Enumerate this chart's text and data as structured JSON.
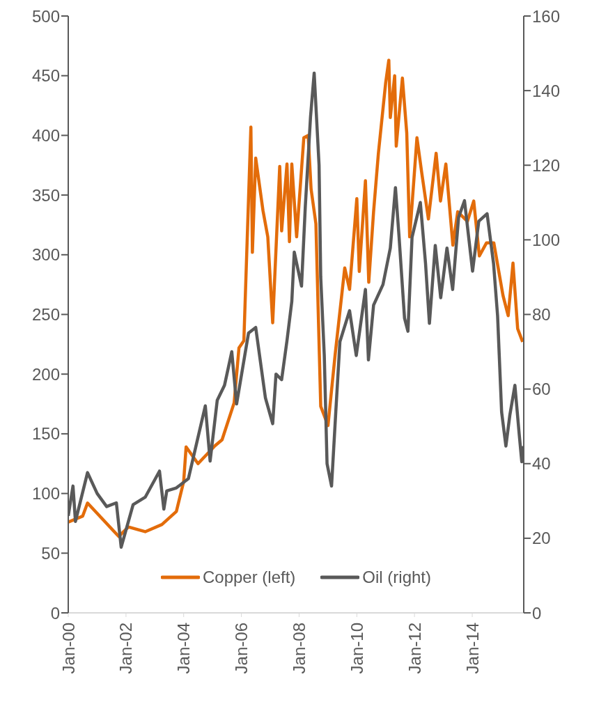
{
  "chart_data": {
    "type": "line",
    "xlim": [
      "2000-01-01",
      "2015-10-15"
    ],
    "xticks": [
      {
        "value": "2000-01-01",
        "label": "Jan-00"
      },
      {
        "value": "2002-01-01",
        "label": "Jan-02"
      },
      {
        "value": "2004-01-01",
        "label": "Jan-04"
      },
      {
        "value": "2006-01-01",
        "label": "Jan-06"
      },
      {
        "value": "2008-01-01",
        "label": "Jan-08"
      },
      {
        "value": "2010-01-01",
        "label": "Jan-10"
      },
      {
        "value": "2012-01-01",
        "label": "Jan-12"
      },
      {
        "value": "2014-01-01",
        "label": "Jan-14"
      }
    ],
    "ylim": [
      0,
      500
    ],
    "yticks": [
      0,
      50,
      100,
      150,
      200,
      250,
      300,
      350,
      400,
      450,
      500
    ],
    "y2lim": [
      0,
      160
    ],
    "y2ticks": [
      0,
      20,
      40,
      60,
      80,
      100,
      120,
      140,
      160
    ],
    "legend": "bottom",
    "marker": "none",
    "series": [
      {
        "name": "Copper (left)",
        "color": "#e36c0a",
        "x": [
          "2000-01",
          "2000-07",
          "2000-09",
          "2001-10",
          "2002-02",
          "2002-09",
          "2003-04",
          "2003-10",
          "2004-01",
          "2004-02",
          "2004-07",
          "2005-02",
          "2005-05",
          "2005-10",
          "2005-12",
          "2006-02",
          "2006-05-01",
          "2006-05-20",
          "2006-07",
          "2006-10",
          "2006-12",
          "2007-02",
          "2007-05-01",
          "2007-05-25",
          "2007-08-01",
          "2007-09-01",
          "2007-10",
          "2007-12",
          "2008-03",
          "2008-04-25",
          "2008-06",
          "2008-08",
          "2008-10",
          "2009-01",
          "2009-04",
          "2009-08",
          "2009-10",
          "2010-01",
          "2010-02",
          "2010-04-20",
          "2010-06",
          "2010-08",
          "2010-10",
          "2011-01",
          "2011-02-10",
          "2011-03",
          "2011-04-25",
          "2011-05-15",
          "2011-08",
          "2011-09-25",
          "2011-11",
          "2011-12-20",
          "2012-02",
          "2012-04",
          "2012-06-25",
          "2012-10",
          "2012-11-25",
          "2013-02",
          "2013-05",
          "2013-07",
          "2013-11",
          "2014-01-20",
          "2014-04",
          "2014-07",
          "2014-10",
          "2015-01-25",
          "2015-04",
          "2015-06-01",
          "2015-07-30",
          "2015-10"
        ],
        "values": [
          76,
          81,
          92,
          64,
          72,
          68,
          74,
          85,
          110,
          139,
          125,
          140,
          145,
          176,
          222,
          228,
          407,
          302,
          381,
          337,
          315,
          243,
          374,
          320,
          376,
          311,
          376,
          315,
          398,
          400,
          355,
          326,
          173,
          157,
          216,
          289,
          271,
          347,
          286,
          362,
          277,
          336,
          385,
          444,
          463,
          415,
          450,
          391,
          448,
          402,
          315,
          359,
          398,
          369,
          330,
          385,
          345,
          376,
          308,
          336,
          328,
          345,
          299,
          310,
          310,
          266,
          249,
          293,
          238,
          227
        ]
      },
      {
        "name": "Oil (right)",
        "color": "#595959",
        "axis": "y2",
        "x": [
          "2000-01",
          "2000-03",
          "2000-04",
          "2000-09",
          "2001-01",
          "2001-05",
          "2001-09",
          "2001-11",
          "2002-04",
          "2002-09",
          "2003-03",
          "2003-04-25",
          "2003-06",
          "2003-10",
          "2004-03",
          "2004-10",
          "2004-12",
          "2005-03",
          "2005-06",
          "2005-09",
          "2005-11",
          "2006-04",
          "2006-07",
          "2006-11",
          "2007-02",
          "2007-03-15",
          "2007-05-25",
          "2007-08",
          "2007-10",
          "2007-11",
          "2008-02",
          "2008-03-20",
          "2008-05-25",
          "2008-07-10",
          "2008-09-10",
          "2008-10",
          "2008-11-15",
          "2008-12-20",
          "2009-02-15",
          "2009-04-10",
          "2009-06",
          "2009-10",
          "2009-12-25",
          "2010-04-20",
          "2010-05-28",
          "2010-08",
          "2010-11-28",
          "2011-03",
          "2011-05-05",
          "2011-06-20",
          "2011-08-28",
          "2011-10-10",
          "2011-12",
          "2012-03-15",
          "2012-05-20",
          "2012-07-08",
          "2012-09-20",
          "2012-11-28",
          "2013-02-15",
          "2013-04-28",
          "2013-07-12",
          "2013-09-25",
          "2014-01-05",
          "2014-03-25",
          "2014-07-08",
          "2014-09-28",
          "2014-11-18",
          "2015-01-08",
          "2015-03-03",
          "2015-04-22",
          "2015-06-25",
          "2015-08-18",
          "2015-09-20",
          "2015-10-10"
        ],
        "values": [
          26,
          34,
          24.5,
          37.6,
          32,
          28.5,
          29.5,
          17.6,
          29,
          31,
          38,
          27.8,
          32.7,
          33.5,
          36,
          55.5,
          40.7,
          57,
          61,
          70,
          56,
          75,
          76.5,
          57.6,
          50.7,
          64,
          62.5,
          73,
          83.5,
          96.7,
          87.6,
          109,
          133,
          144.7,
          120,
          90,
          69,
          40,
          34,
          54,
          72.7,
          81,
          69,
          86.7,
          67.8,
          82.5,
          88,
          97.8,
          114,
          100.7,
          79,
          75.5,
          100.7,
          110,
          93.6,
          77.6,
          98.5,
          84.5,
          97.8,
          86.7,
          106,
          110.5,
          91.6,
          105,
          107,
          93.6,
          79.6,
          53.8,
          44.7,
          53,
          61,
          48,
          40.5,
          44.7
        ]
      }
    ]
  }
}
